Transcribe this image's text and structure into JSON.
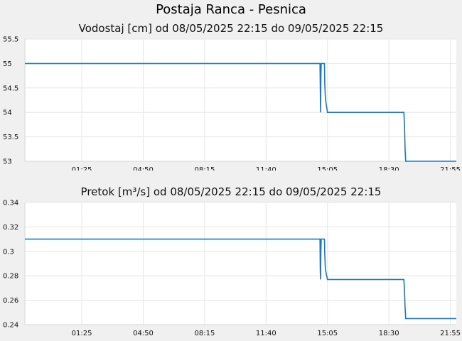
{
  "page": {
    "title": "Postaja Ranca - Pesnica"
  },
  "chart_data": [
    {
      "type": "line",
      "title": "Vodostaj [cm] od 08/05/2025 22:15 do 09/05/2025 22:15",
      "xlabel": "",
      "ylabel": "",
      "x_ticks": [
        "01:25",
        "04:50",
        "08:15",
        "11:40",
        "15:05",
        "18:30",
        "21:55"
      ],
      "ylim": [
        53,
        55.5
      ],
      "y_ticks": [
        "53",
        "53.5",
        "54",
        "54.5",
        "55",
        "55.5"
      ],
      "grid": true,
      "series": [
        {
          "color": "#1f77b4",
          "x": [
            "22:15",
            "14:40",
            "14:41",
            "14:42",
            "14:43",
            "14:44",
            "14:45",
            "14:55",
            "14:56",
            "14:58",
            "15:00",
            "15:05",
            "15:10",
            "19:20",
            "19:22",
            "19:24",
            "19:26",
            "22:15"
          ],
          "values": [
            55,
            55,
            54.5,
            54,
            54.7,
            55,
            55,
            55,
            54.6,
            54.3,
            54.2,
            54,
            54,
            54,
            53.75,
            53.25,
            53,
            53
          ]
        }
      ]
    },
    {
      "type": "line",
      "title": "Pretok [m³/s] od 08/05/2025 22:15 do 09/05/2025 22:15",
      "xlabel": "",
      "ylabel": "",
      "x_ticks": [
        "01:25",
        "04:50",
        "08:15",
        "11:40",
        "15:05",
        "18:30",
        "21:55"
      ],
      "ylim": [
        0.24,
        0.34
      ],
      "y_ticks": [
        "0.24",
        "0.26",
        "0.28",
        "0.3",
        "0.32",
        "0.34"
      ],
      "grid": true,
      "series": [
        {
          "color": "#1f77b4",
          "x": [
            "22:15",
            "14:40",
            "14:41",
            "14:42",
            "14:43",
            "14:44",
            "14:45",
            "14:55",
            "14:56",
            "14:58",
            "15:00",
            "15:05",
            "15:10",
            "19:20",
            "19:22",
            "19:24",
            "19:26",
            "22:15"
          ],
          "values": [
            0.31,
            0.31,
            0.284,
            0.277,
            0.3,
            0.31,
            0.31,
            0.31,
            0.298,
            0.285,
            0.283,
            0.277,
            0.277,
            0.277,
            0.268,
            0.254,
            0.245,
            0.245
          ]
        }
      ]
    }
  ]
}
